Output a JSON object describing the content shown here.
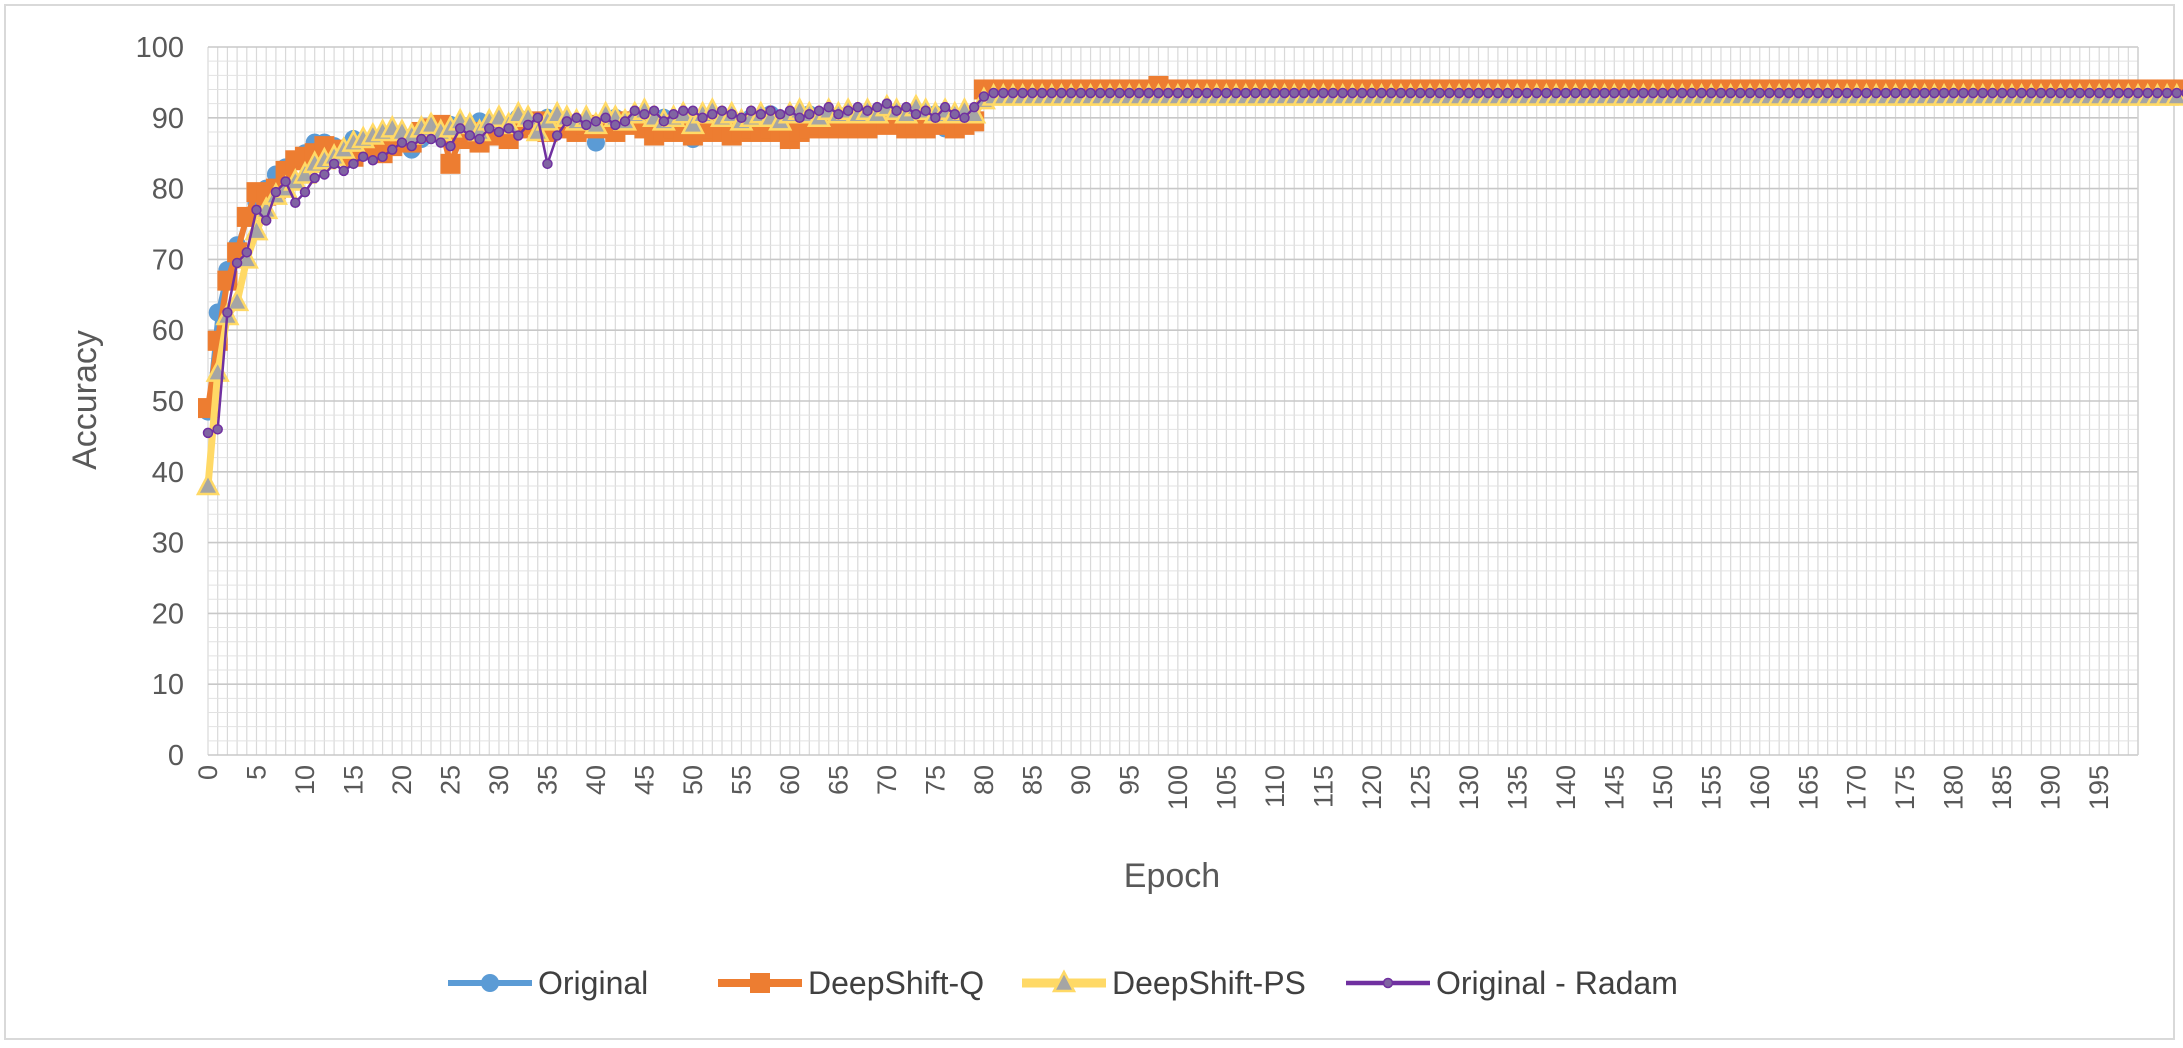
{
  "chart_data": {
    "type": "line",
    "title": "",
    "xlabel": "Epoch",
    "ylabel": "Accuracy",
    "ylim": [
      0,
      100
    ],
    "yticks": [
      0,
      10,
      20,
      30,
      40,
      50,
      60,
      70,
      80,
      90,
      100
    ],
    "xlim": [
      0,
      199
    ],
    "xtick_step": 5,
    "xtick_labels": [
      "0",
      "5",
      "10",
      "15",
      "20",
      "25",
      "30",
      "35",
      "40",
      "45",
      "50",
      "55",
      "60",
      "65",
      "70",
      "75",
      "80",
      "85",
      "90",
      "95",
      "100",
      "105",
      "110",
      "115",
      "120",
      "125",
      "130",
      "135",
      "140",
      "145",
      "150",
      "155",
      "160",
      "165",
      "170",
      "175",
      "180",
      "185",
      "190",
      "195"
    ],
    "grid": true,
    "legend": "bottom",
    "series": [
      {
        "name": "Original",
        "color": "#5b9bd5",
        "marker": "circle",
        "values": [
          48.5,
          62.5,
          68.5,
          72.0,
          76.0,
          78.0,
          80.0,
          82.0,
          83.0,
          84.0,
          85.0,
          86.5,
          86.5,
          86.0,
          85.5,
          87.0,
          86.0,
          85.5,
          86.0,
          87.0,
          86.5,
          85.5,
          87.0,
          88.0,
          87.5,
          89.0,
          88.5,
          88.0,
          89.5,
          88.0,
          89.0,
          88.5,
          90.0,
          89.0,
          88.5,
          90.0,
          89.5,
          89.0,
          88.5,
          89.0,
          86.5,
          89.5,
          90.0,
          89.0,
          90.0,
          90.5,
          89.5,
          90.0,
          88.5,
          89.5,
          87.0,
          89.0,
          89.5,
          90.0,
          87.5,
          89.0,
          90.0,
          89.5,
          90.5,
          88.5,
          90.0,
          89.0,
          90.5,
          89.5,
          90.0,
          89.0,
          90.5,
          89.0,
          90.0,
          89.5,
          89.0,
          90.0,
          89.5,
          89.0,
          90.0,
          90.5,
          88.5,
          89.0,
          89.5,
          90.0,
          93.8,
          93.9,
          94.0,
          94.0,
          94.0,
          94.0,
          94.0,
          94.0,
          94.0,
          94.0,
          94.0,
          94.0,
          94.0,
          94.0,
          94.0,
          94.0,
          94.0,
          94.0,
          94.0,
          94.0,
          94.0,
          94.0,
          94.0,
          94.0,
          94.0,
          94.0,
          94.0,
          94.0,
          94.0,
          94.0,
          94.0,
          94.0,
          94.0,
          94.0,
          94.0,
          94.0,
          94.0,
          94.0,
          94.0,
          94.0,
          94.0,
          94.0,
          94.0,
          94.0,
          94.0,
          94.0,
          94.0,
          94.0,
          94.0,
          94.0,
          94.0,
          94.0,
          94.0,
          94.0,
          94.0,
          94.0,
          94.0,
          94.0,
          94.0,
          94.0,
          94.0,
          94.0,
          94.0,
          94.0,
          94.0,
          94.0,
          94.0,
          94.0,
          94.0,
          94.0,
          94.0,
          94.0,
          94.0,
          94.0,
          94.0,
          94.0,
          94.0,
          94.0,
          94.0,
          94.0,
          94.0,
          94.0,
          94.0,
          94.0,
          94.0,
          94.0,
          94.0,
          94.0,
          94.0,
          94.0,
          94.0,
          94.0,
          94.0,
          94.0,
          94.0,
          94.0,
          94.0,
          94.0,
          94.0,
          94.0,
          94.0,
          94.0,
          94.0,
          94.0,
          94.0,
          94.0,
          94.0,
          94.0,
          94.0,
          94.0,
          94.0,
          94.0,
          94.0,
          94.0,
          94.0,
          94.0,
          94.0,
          94.0,
          94.0,
          94.0,
          94.0,
          94.0,
          94.0,
          94.0
        ]
      },
      {
        "name": "DeepShift-Q",
        "color": "#ed7d31",
        "marker": "square",
        "values": [
          49.0,
          58.5,
          67.0,
          71.0,
          76.0,
          79.5,
          79.0,
          80.0,
          82.5,
          84.0,
          84.5,
          85.0,
          86.0,
          85.5,
          85.0,
          84.5,
          85.5,
          86.0,
          85.0,
          86.0,
          87.0,
          86.5,
          88.0,
          88.5,
          89.0,
          83.5,
          87.0,
          88.0,
          86.5,
          87.5,
          88.0,
          87.0,
          88.5,
          89.0,
          89.5,
          88.0,
          88.5,
          89.0,
          88.0,
          89.0,
          88.5,
          89.0,
          88.0,
          89.5,
          89.0,
          88.5,
          87.5,
          88.0,
          88.5,
          88.0,
          87.5,
          88.0,
          88.5,
          88.0,
          87.5,
          88.0,
          88.5,
          88.0,
          88.5,
          88.0,
          87.0,
          88.0,
          88.5,
          89.0,
          88.5,
          89.0,
          88.5,
          89.0,
          88.5,
          89.5,
          89.0,
          89.5,
          88.5,
          89.0,
          88.5,
          89.0,
          89.5,
          88.5,
          89.0,
          89.5,
          94.0,
          94.0,
          94.0,
          94.0,
          94.0,
          94.0,
          94.0,
          94.0,
          94.0,
          94.0,
          94.0,
          94.0,
          94.0,
          94.0,
          94.0,
          94.0,
          94.0,
          94.0,
          94.5,
          94.0,
          94.0,
          94.0,
          94.0,
          94.0,
          94.0,
          94.0,
          94.0,
          94.0,
          94.0,
          94.0,
          94.0,
          94.0,
          94.0,
          94.0,
          94.0,
          94.0,
          94.0,
          94.0,
          94.0,
          94.0,
          94.0,
          94.0,
          94.0,
          94.0,
          94.0,
          94.0,
          94.0,
          94.0,
          94.0,
          94.0,
          94.0,
          94.0,
          94.0,
          94.0,
          94.0,
          94.0,
          94.0,
          94.0,
          94.0,
          94.0,
          94.0,
          94.0,
          94.0,
          94.0,
          94.0,
          94.0,
          94.0,
          94.0,
          94.0,
          94.0,
          94.0,
          94.0,
          94.0,
          94.0,
          94.0,
          94.0,
          94.0,
          94.0,
          94.0,
          94.0,
          94.0,
          94.0,
          94.0,
          94.0,
          94.0,
          94.0,
          94.0,
          94.0,
          94.0,
          94.0,
          94.0,
          94.0,
          94.0,
          94.0,
          94.0,
          94.0,
          94.0,
          94.0,
          94.0,
          94.0,
          94.0,
          94.0,
          94.0,
          94.0,
          94.0,
          94.0,
          94.0,
          94.0,
          94.0,
          94.0,
          94.0,
          94.0,
          94.0,
          94.0,
          94.0,
          94.0,
          94.0,
          94.0,
          94.0,
          94.0,
          94.0,
          94.0,
          94.0,
          94.0
        ]
      },
      {
        "name": "DeepShift-PS",
        "color": "#ffd966",
        "marker": "triangle",
        "values": [
          38.0,
          54.0,
          62.0,
          64.0,
          70.0,
          74.0,
          77.0,
          79.0,
          80.0,
          81.0,
          82.0,
          83.5,
          84.0,
          84.5,
          85.5,
          86.5,
          87.0,
          87.5,
          88.0,
          88.5,
          88.0,
          87.5,
          88.5,
          89.0,
          88.0,
          88.5,
          89.5,
          89.0,
          88.0,
          89.5,
          90.0,
          89.0,
          90.5,
          90.0,
          88.0,
          89.5,
          90.5,
          90.0,
          89.5,
          90.0,
          89.0,
          90.5,
          90.0,
          89.5,
          90.5,
          91.0,
          90.0,
          89.5,
          90.0,
          90.5,
          89.0,
          90.5,
          91.0,
          90.0,
          90.5,
          89.5,
          90.0,
          90.5,
          90.0,
          89.5,
          90.5,
          91.0,
          90.5,
          90.0,
          91.0,
          90.5,
          91.0,
          90.5,
          91.0,
          90.5,
          91.5,
          91.0,
          90.5,
          91.5,
          91.0,
          90.5,
          91.0,
          90.5,
          91.0,
          90.5,
          92.5,
          93.0,
          93.0,
          93.0,
          93.0,
          93.0,
          93.0,
          93.0,
          93.0,
          93.0,
          93.0,
          93.0,
          93.0,
          93.0,
          93.0,
          93.0,
          93.0,
          93.0,
          93.0,
          93.0,
          93.0,
          93.0,
          93.0,
          93.0,
          93.0,
          93.0,
          93.0,
          93.0,
          93.0,
          93.0,
          93.0,
          93.0,
          93.0,
          93.0,
          93.0,
          93.0,
          93.0,
          93.0,
          93.0,
          93.0,
          93.0,
          93.0,
          93.0,
          93.0,
          93.0,
          93.0,
          93.0,
          93.0,
          93.0,
          93.0,
          93.0,
          93.0,
          93.0,
          93.0,
          93.0,
          93.0,
          93.0,
          93.0,
          93.0,
          93.0,
          93.0,
          93.0,
          93.0,
          93.0,
          93.0,
          93.0,
          93.0,
          93.0,
          93.0,
          93.0,
          93.0,
          93.0,
          93.0,
          93.0,
          93.0,
          93.0,
          93.0,
          93.0,
          93.0,
          93.0,
          93.0,
          93.0,
          93.0,
          93.0,
          93.0,
          93.0,
          93.0,
          93.0,
          93.0,
          93.0,
          93.0,
          93.0,
          93.0,
          93.0,
          93.0,
          93.0,
          93.0,
          93.0,
          93.0,
          93.0,
          93.0,
          93.0,
          93.0,
          93.0,
          93.0,
          93.0,
          93.0,
          93.0,
          93.0,
          93.0,
          93.0,
          93.0,
          93.0,
          93.0,
          93.0,
          93.0,
          93.0,
          93.0,
          93.0,
          93.0,
          93.0,
          93.0,
          93.0,
          93.0
        ]
      },
      {
        "name": "Original - Radam",
        "color": "#7030a0",
        "marker": "small-circle",
        "values": [
          45.5,
          46.0,
          62.5,
          69.5,
          71.0,
          77.0,
          75.5,
          79.5,
          81.0,
          78.0,
          79.5,
          81.5,
          82.0,
          83.5,
          82.5,
          83.5,
          84.5,
          84.0,
          84.5,
          85.5,
          86.5,
          86.0,
          87.0,
          87.0,
          86.5,
          86.0,
          88.5,
          87.5,
          87.0,
          88.5,
          88.0,
          88.5,
          87.5,
          89.0,
          90.0,
          83.5,
          87.5,
          89.5,
          90.0,
          89.0,
          89.5,
          90.0,
          89.0,
          89.5,
          91.0,
          90.5,
          91.0,
          89.5,
          90.5,
          91.0,
          91.0,
          90.0,
          90.5,
          91.0,
          90.5,
          90.0,
          91.0,
          90.5,
          91.0,
          90.5,
          91.0,
          90.0,
          90.5,
          91.0,
          91.5,
          90.5,
          91.0,
          91.5,
          91.0,
          91.5,
          92.0,
          91.0,
          91.5,
          90.5,
          91.0,
          90.0,
          91.5,
          90.5,
          90.0,
          91.5,
          93.0,
          93.5,
          93.5,
          93.5,
          93.5,
          93.5,
          93.5,
          93.5,
          93.5,
          93.5,
          93.5,
          93.5,
          93.5,
          93.5,
          93.5,
          93.5,
          93.5,
          93.5,
          93.5,
          93.5,
          93.5,
          93.5,
          93.5,
          93.5,
          93.5,
          93.5,
          93.5,
          93.5,
          93.5,
          93.5,
          93.5,
          93.5,
          93.5,
          93.5,
          93.5,
          93.5,
          93.5,
          93.5,
          93.5,
          93.5,
          93.5,
          93.5,
          93.5,
          93.5,
          93.5,
          93.5,
          93.5,
          93.5,
          93.5,
          93.5,
          93.5,
          93.5,
          93.5,
          93.5,
          93.5,
          93.5,
          93.5,
          93.5,
          93.5,
          93.5,
          93.5,
          93.5,
          93.5,
          93.5,
          93.5,
          93.5,
          93.5,
          93.5,
          93.5,
          93.5,
          93.5,
          93.5,
          93.5,
          93.5,
          93.5,
          93.5,
          93.5,
          93.5,
          93.5,
          93.5,
          93.5,
          93.5,
          93.5,
          93.5,
          93.5,
          93.5,
          93.5,
          93.5,
          93.5,
          93.5,
          93.5,
          93.5,
          93.5,
          93.5,
          93.5,
          93.5,
          93.5,
          93.5,
          93.5,
          93.5,
          93.5,
          93.5,
          93.5,
          93.5,
          93.5,
          93.5,
          93.5,
          93.5,
          93.5,
          93.5,
          93.5,
          93.5,
          93.5,
          93.5,
          93.5,
          93.5,
          93.5,
          93.5,
          93.5,
          93.5,
          93.5,
          93.5,
          93.5,
          93.5,
          93.5,
          93.5
        ]
      }
    ]
  }
}
